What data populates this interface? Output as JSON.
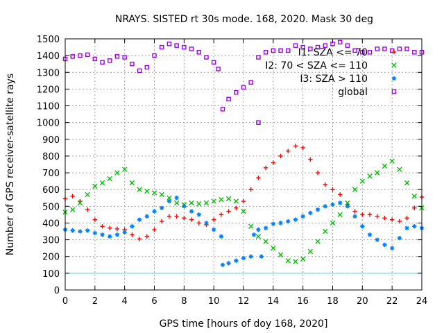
{
  "chart_data": {
    "type": "scatter",
    "title": "NRAYS. SISTED rt 30s mode. 168, 2020. Mask 30 deg",
    "xlabel": "GPS time [hours of doy 168, 2020]",
    "ylabel": "Number of GPS receiver-satellite rays",
    "xlim": [
      0,
      24
    ],
    "ylim": [
      0,
      1500
    ],
    "x_ticks": [
      "0",
      "2",
      "4",
      "6",
      "8",
      "10",
      "12",
      "14",
      "16",
      "18",
      "20",
      "22",
      "24"
    ],
    "y_ticks": [
      "0",
      "100",
      "200",
      "300",
      "400",
      "500",
      "600",
      "700",
      "800",
      "900",
      "1000",
      "1100",
      "1200",
      "1300",
      "1400",
      "1500"
    ],
    "grid": true,
    "legend_position": "top-right",
    "reference_line": {
      "y": 100,
      "color": "#40e0e0"
    },
    "series": [
      {
        "name": "I1: SZA <= 70",
        "color": "#ff0000",
        "marker": "plus",
        "points": [
          [
            0,
            545
          ],
          [
            0.5,
            560
          ],
          [
            1,
            530
          ],
          [
            1.5,
            480
          ],
          [
            2,
            420
          ],
          [
            2.5,
            380
          ],
          [
            3,
            370
          ],
          [
            3.5,
            365
          ],
          [
            4,
            360
          ],
          [
            4.5,
            330
          ],
          [
            5,
            305
          ],
          [
            5.5,
            320
          ],
          [
            6,
            360
          ],
          [
            6.5,
            410
          ],
          [
            7,
            440
          ],
          [
            7.5,
            440
          ],
          [
            8,
            430
          ],
          [
            8.5,
            420
          ],
          [
            9,
            400
          ],
          [
            9.5,
            390
          ],
          [
            10,
            420
          ],
          [
            10.5,
            450
          ],
          [
            11,
            470
          ],
          [
            11.5,
            490
          ],
          [
            12,
            530
          ],
          [
            12.5,
            600
          ],
          [
            13,
            670
          ],
          [
            13.5,
            730
          ],
          [
            14,
            760
          ],
          [
            14.5,
            800
          ],
          [
            15,
            830
          ],
          [
            15.5,
            860
          ],
          [
            16,
            850
          ],
          [
            16.5,
            780
          ],
          [
            17,
            700
          ],
          [
            17.5,
            630
          ],
          [
            18,
            600
          ],
          [
            18.5,
            570
          ],
          [
            19,
            510
          ],
          [
            19.5,
            470
          ],
          [
            20,
            450
          ],
          [
            20.5,
            450
          ],
          [
            21,
            440
          ],
          [
            21.5,
            430
          ],
          [
            22,
            420
          ],
          [
            22.5,
            410
          ],
          [
            23,
            430
          ],
          [
            23.5,
            490
          ],
          [
            24,
            555
          ]
        ]
      },
      {
        "name": "I2: 70 < SZA <= 110",
        "color": "#00c000",
        "marker": "x",
        "points": [
          [
            0,
            465
          ],
          [
            0.5,
            480
          ],
          [
            1,
            520
          ],
          [
            1.5,
            570
          ],
          [
            2,
            620
          ],
          [
            2.5,
            640
          ],
          [
            3,
            665
          ],
          [
            3.5,
            700
          ],
          [
            4,
            720
          ],
          [
            4.5,
            640
          ],
          [
            5,
            600
          ],
          [
            5.5,
            590
          ],
          [
            6,
            580
          ],
          [
            6.5,
            570
          ],
          [
            7,
            550
          ],
          [
            7.5,
            520
          ],
          [
            8,
            510
          ],
          [
            8.5,
            520
          ],
          [
            9,
            515
          ],
          [
            9.5,
            520
          ],
          [
            10,
            530
          ],
          [
            10.5,
            540
          ],
          [
            11,
            545
          ],
          [
            11.5,
            530
          ],
          [
            12,
            470
          ],
          [
            12.5,
            380
          ],
          [
            13,
            320
          ],
          [
            13.5,
            290
          ],
          [
            14,
            250
          ],
          [
            14.5,
            210
          ],
          [
            15,
            175
          ],
          [
            15.5,
            170
          ],
          [
            16,
            185
          ],
          [
            16.5,
            230
          ],
          [
            17,
            290
          ],
          [
            17.5,
            350
          ],
          [
            18,
            400
          ],
          [
            18.5,
            450
          ],
          [
            19,
            520
          ],
          [
            19.5,
            600
          ],
          [
            20,
            650
          ],
          [
            20.5,
            680
          ],
          [
            21,
            700
          ],
          [
            21.5,
            740
          ],
          [
            22,
            770
          ],
          [
            22.5,
            720
          ],
          [
            23,
            640
          ],
          [
            23.5,
            560
          ],
          [
            24,
            490
          ]
        ]
      },
      {
        "name": "I3: SZA > 110",
        "color": "#0080ff",
        "marker": "star",
        "points": [
          [
            0,
            360
          ],
          [
            0.5,
            355
          ],
          [
            1,
            350
          ],
          [
            1.5,
            355
          ],
          [
            2,
            340
          ],
          [
            2.5,
            330
          ],
          [
            3,
            320
          ],
          [
            3.5,
            330
          ],
          [
            4,
            345
          ],
          [
            4.5,
            380
          ],
          [
            5,
            420
          ],
          [
            5.5,
            440
          ],
          [
            6,
            470
          ],
          [
            6.5,
            490
          ],
          [
            7,
            530
          ],
          [
            7.5,
            550
          ],
          [
            8,
            500
          ],
          [
            8.5,
            470
          ],
          [
            9,
            450
          ],
          [
            9.5,
            400
          ],
          [
            10,
            360
          ],
          [
            10.5,
            320
          ],
          [
            10.6,
            150
          ],
          [
            11,
            160
          ],
          [
            11.5,
            175
          ],
          [
            12,
            190
          ],
          [
            12.5,
            200
          ],
          [
            12.7,
            330
          ],
          [
            13,
            360
          ],
          [
            13.2,
            200
          ],
          [
            13.5,
            370
          ],
          [
            14,
            395
          ],
          [
            14.5,
            400
          ],
          [
            15,
            410
          ],
          [
            15.5,
            420
          ],
          [
            16,
            440
          ],
          [
            16.5,
            460
          ],
          [
            17,
            480
          ],
          [
            17.5,
            500
          ],
          [
            18,
            510
          ],
          [
            18.5,
            520
          ],
          [
            19,
            500
          ],
          [
            19.5,
            440
          ],
          [
            20,
            380
          ],
          [
            20.5,
            330
          ],
          [
            21,
            300
          ],
          [
            21.5,
            270
          ],
          [
            22,
            250
          ],
          [
            22.5,
            310
          ],
          [
            23,
            370
          ],
          [
            23.5,
            380
          ],
          [
            24,
            370
          ]
        ]
      },
      {
        "name": "global",
        "color": "#a000f0",
        "marker": "square",
        "points": [
          [
            0,
            1380
          ],
          [
            0.5,
            1395
          ],
          [
            1,
            1400
          ],
          [
            1.5,
            1405
          ],
          [
            2,
            1380
          ],
          [
            2.5,
            1360
          ],
          [
            3,
            1370
          ],
          [
            3.5,
            1395
          ],
          [
            4,
            1390
          ],
          [
            4.5,
            1350
          ],
          [
            5,
            1310
          ],
          [
            5.5,
            1330
          ],
          [
            6,
            1400
          ],
          [
            6.5,
            1450
          ],
          [
            7,
            1470
          ],
          [
            7.5,
            1460
          ],
          [
            8,
            1450
          ],
          [
            8.5,
            1440
          ],
          [
            9,
            1420
          ],
          [
            9.5,
            1390
          ],
          [
            10,
            1360
          ],
          [
            10.3,
            1320
          ],
          [
            10.6,
            1080
          ],
          [
            11,
            1140
          ],
          [
            11.5,
            1180
          ],
          [
            12,
            1210
          ],
          [
            12.5,
            1240
          ],
          [
            13,
            1000
          ],
          [
            13,
            1390
          ],
          [
            13.5,
            1420
          ],
          [
            14,
            1430
          ],
          [
            14.5,
            1430
          ],
          [
            15,
            1430
          ],
          [
            15.5,
            1460
          ],
          [
            16,
            1450
          ],
          [
            16.5,
            1440
          ],
          [
            17,
            1450
          ],
          [
            17.5,
            1460
          ],
          [
            18,
            1470
          ],
          [
            18.5,
            1480
          ],
          [
            19,
            1460
          ],
          [
            19.5,
            1430
          ],
          [
            20,
            1420
          ],
          [
            20.5,
            1420
          ],
          [
            21,
            1440
          ],
          [
            21.5,
            1440
          ],
          [
            22,
            1430
          ],
          [
            22.5,
            1440
          ],
          [
            23,
            1440
          ],
          [
            23.5,
            1420
          ],
          [
            24,
            1420
          ]
        ]
      }
    ]
  }
}
